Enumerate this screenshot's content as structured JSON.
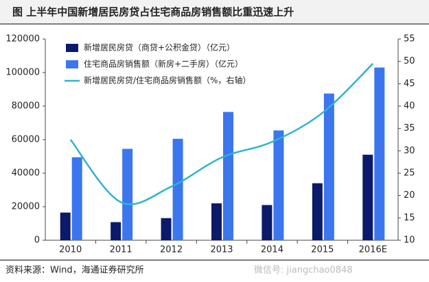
{
  "chart_data": {
    "type": "bar-line",
    "title": "图   上半年中国新增居民房贷占住宅商品房销售额比重迅速上升",
    "source": "资料来源：Wind，海通证券研究所",
    "watermark": "微信号: jiangchao0848",
    "categories": [
      "2010",
      "2011",
      "2012",
      "2013",
      "2014",
      "2015",
      "2016E"
    ],
    "series": [
      {
        "name": "新增居民房贷（商贷+公积金贷）（亿元）",
        "type": "bar",
        "color": "#0b1a6b",
        "values": [
          16500,
          10800,
          13200,
          22000,
          21000,
          34000,
          51000
        ]
      },
      {
        "name": "住宅商品房销售额（新房+二手房）（亿元）",
        "type": "bar",
        "color": "#3b76ee",
        "values": [
          49500,
          54500,
          60500,
          76500,
          65500,
          87500,
          103000
        ]
      },
      {
        "name": "新增居民房贷/住宅商品房销售额（%，右轴）",
        "type": "line",
        "axis": "y2",
        "color": "#2fb3cc",
        "values": [
          32.5,
          18.5,
          22,
          28.5,
          32,
          38.5,
          49.5
        ]
      }
    ],
    "ylim": [
      0,
      120000
    ],
    "yticks": [
      0,
      20000,
      40000,
      60000,
      80000,
      100000,
      120000
    ],
    "y2lim": [
      10,
      55
    ],
    "y2ticks": [
      10,
      15,
      20,
      25,
      30,
      35,
      40,
      45,
      50,
      55
    ]
  }
}
